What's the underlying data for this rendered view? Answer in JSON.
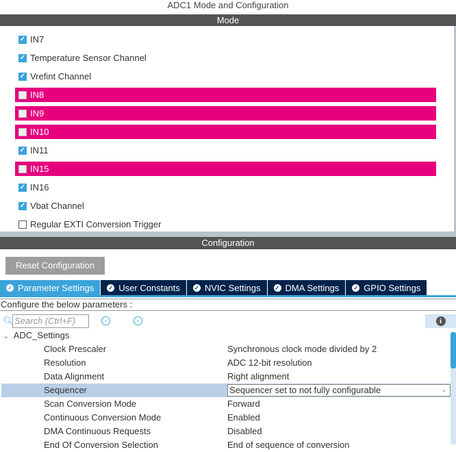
{
  "title": "ADC1 Mode and Configuration",
  "mode": {
    "header": "Mode",
    "items": [
      {
        "label": "IN7",
        "checked": true,
        "error": false
      },
      {
        "label": "Temperature Sensor Channel",
        "checked": true,
        "error": false
      },
      {
        "label": "Vrefint Channel",
        "checked": true,
        "error": false
      },
      {
        "label": "IN8",
        "checked": false,
        "error": true
      },
      {
        "label": "IN9",
        "checked": false,
        "error": true
      },
      {
        "label": "IN10",
        "checked": false,
        "error": true
      },
      {
        "label": "IN11",
        "checked": true,
        "error": false
      },
      {
        "label": "IN15",
        "checked": false,
        "error": true
      },
      {
        "label": "IN16",
        "checked": true,
        "error": false
      },
      {
        "label": "Vbat Channel",
        "checked": true,
        "error": false
      },
      {
        "label": "Regular EXTI Conversion Trigger",
        "checked": false,
        "error": false
      }
    ]
  },
  "config": {
    "header": "Configuration",
    "reset_label": "Reset Configuration",
    "tabs": [
      {
        "label": "Parameter Settings",
        "active": true
      },
      {
        "label": "User Constants"
      },
      {
        "label": "NVIC Settings"
      },
      {
        "label": "DMA Settings"
      },
      {
        "label": "GPIO Settings"
      }
    ],
    "instructions": "Configure the below parameters :",
    "search_placeholder": "Search (Ctrl+F)",
    "group": "ADC_Settings",
    "params": [
      {
        "name": "Clock Prescaler",
        "value": "Synchronous clock mode divided by 2"
      },
      {
        "name": "Resolution",
        "value": "ADC 12-bit resolution"
      },
      {
        "name": "Data Alignment",
        "value": "Right alignment"
      },
      {
        "name": "Sequencer",
        "value": "Sequencer set to not fully configurable",
        "selected": true
      },
      {
        "name": "Scan Conversion Mode",
        "value": "Forward"
      },
      {
        "name": "Continuous Conversion Mode",
        "value": "Enabled"
      },
      {
        "name": "DMA Continuous Requests",
        "value": "Disabled"
      },
      {
        "name": "End Of Conversion Selection",
        "value": "End of sequence of conversion"
      }
    ]
  },
  "colors": {
    "error": "#e6007e",
    "accent": "#3aa3db",
    "tab_bg": "#03234b",
    "header": "#535554"
  }
}
